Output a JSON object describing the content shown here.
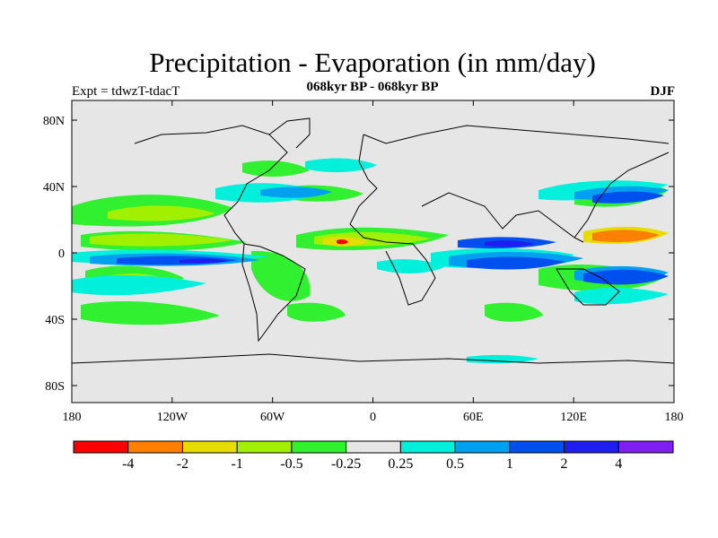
{
  "title": "Precipitation - Evaporation (in mm/day)",
  "subtitle": "068kyr BP - 068kyr BP",
  "left_label": "Expt = tdwzT-tdacT",
  "right_label": "DJF",
  "lat_ticks": [
    "80N",
    "40N",
    "0",
    "40S",
    "80S"
  ],
  "lon_ticks": [
    "180",
    "120W",
    "60W",
    "0",
    "60E",
    "120E",
    "180"
  ],
  "colorbar": {
    "colors": [
      "#ff0000",
      "#ff8000",
      "#e6dc00",
      "#a0f000",
      "#30f030",
      "#e6e6e6",
      "#00f0dc",
      "#00a0f0",
      "#0050f0",
      "#1e1ef0",
      "#8020f0"
    ],
    "labels": [
      "-4",
      "-2",
      "-1",
      "-0.5",
      "-0.25",
      "0.25",
      "0.5",
      "1",
      "2",
      "4"
    ]
  },
  "colors": {
    "land_neutral": "#e6e6e6",
    "frame": "#000000"
  }
}
